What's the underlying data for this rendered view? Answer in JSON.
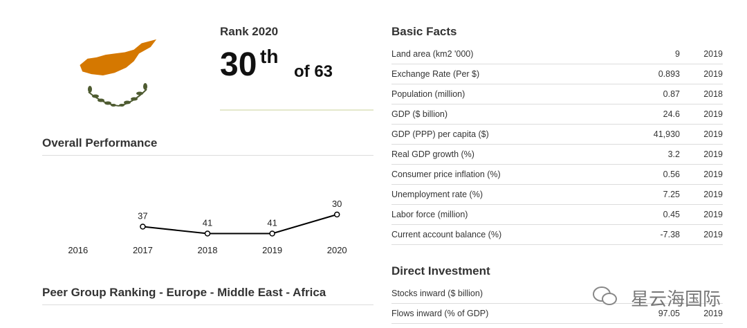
{
  "rank": {
    "heading": "Rank 2020",
    "position": "30",
    "suffix": "th",
    "of": "of 63"
  },
  "overall": {
    "title": "Overall Performance",
    "chart_data": {
      "type": "line",
      "categories": [
        "2016",
        "2017",
        "2018",
        "2019",
        "2020"
      ],
      "values": [
        null,
        37,
        41,
        41,
        30
      ],
      "ylim": [
        44,
        22
      ],
      "color": "#000000"
    }
  },
  "peer_group": {
    "title": "Peer Group Ranking - Europe - Middle East - Africa"
  },
  "basic_facts": {
    "title": "Basic Facts",
    "rows": [
      [
        "Land area (km2 '000)",
        "9",
        "2019"
      ],
      [
        "Exchange Rate (Per $)",
        "0.893",
        "2019"
      ],
      [
        "Population (million)",
        "0.87",
        "2018"
      ],
      [
        "GDP ($ billion)",
        "24.6",
        "2019"
      ],
      [
        "GDP (PPP) per capita ($)",
        "41,930",
        "2019"
      ],
      [
        "Real GDP growth (%)",
        "3.2",
        "2019"
      ],
      [
        "Consumer price inflation (%)",
        "0.56",
        "2019"
      ],
      [
        "Unemployment rate (%)",
        "7.25",
        "2019"
      ],
      [
        "Labor force (million)",
        "0.45",
        "2019"
      ],
      [
        "Current account balance (%)",
        "-7.38",
        "2019"
      ]
    ]
  },
  "direct_investment": {
    "title": "Direct Investment",
    "rows": [
      [
        "Stocks inward ($ billion)"
      ],
      [
        "Flows inward (% of GDP)",
        "97.05",
        "2019"
      ]
    ]
  },
  "watermark": "星云海国际"
}
